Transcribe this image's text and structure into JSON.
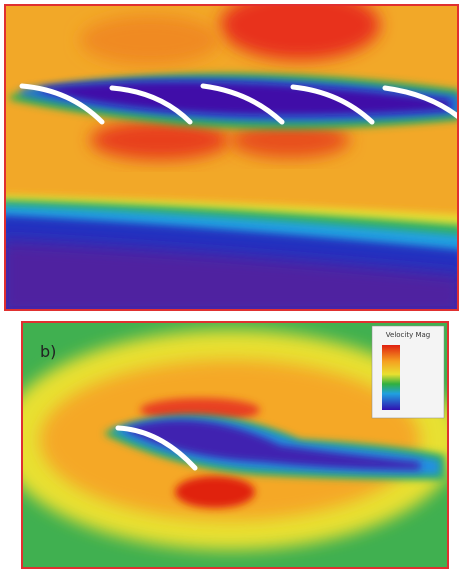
{
  "figure": {
    "panel_b_label": "b)",
    "legend_title": "Velocity Mag"
  }
}
